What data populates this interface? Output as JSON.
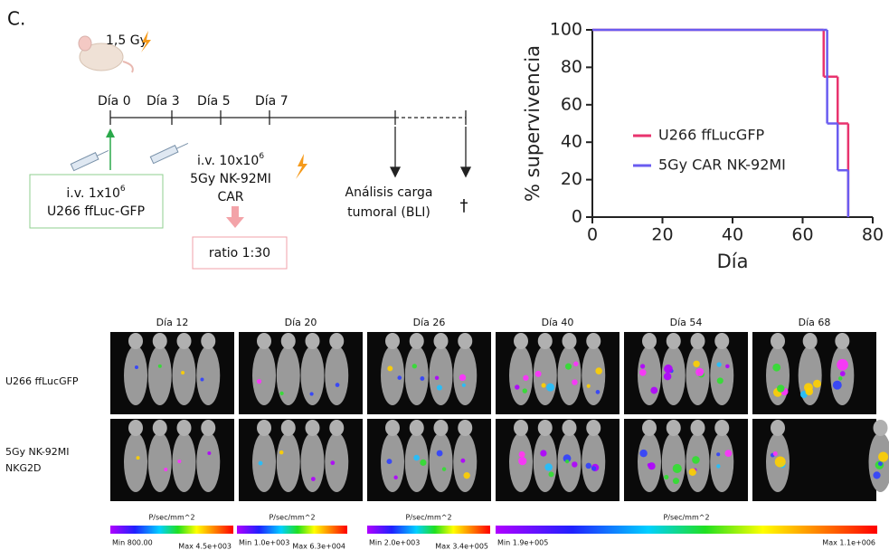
{
  "panel_label": "C.",
  "timeline": {
    "dose": "1,5 Gy",
    "days": [
      "Día 0",
      "Día 3",
      "Día 5",
      "Día 7"
    ],
    "injection1": {
      "line1": "i.v. 1x10",
      "exponent": "6",
      "line2": "U266 ffLuc-GFP"
    },
    "injection2": {
      "line1": "i.v. 10x10",
      "exponent": "6",
      "line2": "5Gy NK-92MI",
      "line3": "CAR"
    },
    "ratio": "ratio 1:30",
    "analysis": [
      "Análisis carga",
      "tumoral (BLI)"
    ],
    "death": "†"
  },
  "chart_data": {
    "type": "line",
    "step": "post",
    "x": [
      0,
      66,
      67,
      70,
      73
    ],
    "series": [
      {
        "name": "U266 ffLucGFP",
        "color": "#e8336e",
        "values": [
          100,
          75,
          75,
          50,
          0
        ]
      },
      {
        "name": "5Gy CAR NK-92MI",
        "color": "#6a5cf0",
        "values": [
          100,
          100,
          50,
          25,
          0
        ]
      }
    ],
    "xlabel": "Día",
    "ylabel": "% supervivencia",
    "xlim": [
      0,
      80
    ],
    "xticks": [
      0,
      20,
      40,
      60,
      80
    ],
    "ylim": [
      0,
      100
    ],
    "yticks": [
      0,
      20,
      40,
      60,
      80,
      100
    ]
  },
  "imaging": {
    "columns": [
      "Día 12",
      "Día 20",
      "Día 26",
      "Día 40",
      "Día 54",
      "Día 68"
    ],
    "rows": [
      [
        "U266 ffLucGFP"
      ],
      [
        "5Gy NK-92MI",
        "NKG2D"
      ]
    ],
    "colorbars": [
      {
        "unit": "P/sec/mm^2",
        "min": "Min 800.00",
        "max": "Max 4.5e+003"
      },
      {
        "unit": "P/sec/mm^2",
        "min": "Min 1.0e+003",
        "max": "Max 6.3e+004"
      },
      {
        "unit": "P/sec/mm^2",
        "min": "Min 2.0e+003",
        "max": "Max 3.4e+005"
      },
      {
        "unit": "P/sec/mm^2",
        "min": "Min 1.9e+005",
        "max": "Max 1.1e+006"
      }
    ]
  }
}
